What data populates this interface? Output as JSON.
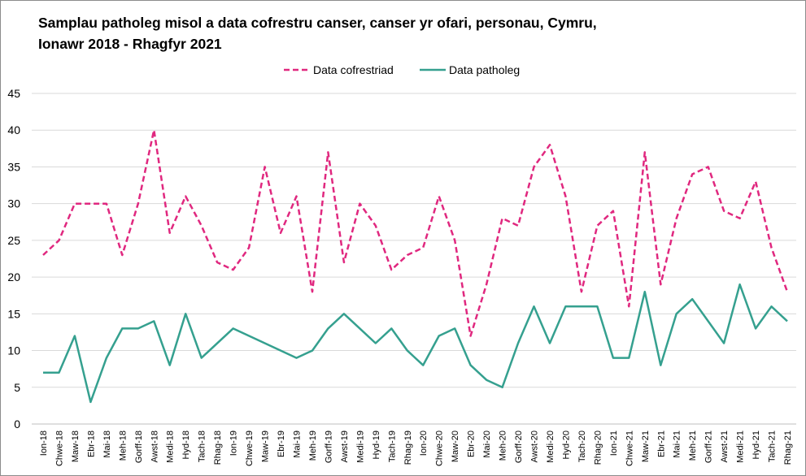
{
  "chart_data": {
    "type": "line",
    "title_lines": [
      "Samplau patholeg misol a data cofrestru canser, canser yr ofari, personau, Cymru,",
      "Ionawr 2018 - Rhagfyr 2021"
    ],
    "xlabel": "",
    "ylabel": "",
    "ylim": [
      0,
      45
    ],
    "yticks": [
      0,
      5,
      10,
      15,
      20,
      25,
      30,
      35,
      40,
      45
    ],
    "grid": true,
    "legend_position": "top-center",
    "categories": [
      "Ion-18",
      "Chwe-18",
      "Maw-18",
      "Ebr-18",
      "Mai-18",
      "Meh-18",
      "Gorff-18",
      "Awst-18",
      "Medi-18",
      "Hyd-18",
      "Tach-18",
      "Rhag-18",
      "Ion-19",
      "Chwe-19",
      "Maw-19",
      "Ebr-19",
      "Mai-19",
      "Meh-19",
      "Gorff-19",
      "Awst-19",
      "Medi-19",
      "Hyd-19",
      "Tach-19",
      "Rhag-19",
      "Ion-20",
      "Chwe-20",
      "Maw-20",
      "Ebr-20",
      "Mai-20",
      "Meh-20",
      "Gorff-20",
      "Awst-20",
      "Medi-20",
      "Hyd-20",
      "Tach-20",
      "Rhag-20",
      "Ion-21",
      "Chwe-21",
      "Maw-21",
      "Ebr-21",
      "Mai-21",
      "Meh-21",
      "Gorff-21",
      "Awst-21",
      "Medi-21",
      "Hyd-21",
      "Tach-21",
      "Rhag-21"
    ],
    "series": [
      {
        "name": "Data cofrestriad",
        "color": "#e0287f",
        "dash": true,
        "values": [
          23,
          25,
          30,
          30,
          30,
          23,
          30,
          40,
          26,
          31,
          27,
          22,
          21,
          24,
          35,
          26,
          31,
          18,
          37,
          22,
          30,
          27,
          21,
          23,
          24,
          31,
          25,
          12,
          19,
          28,
          27,
          35,
          38,
          31,
          18,
          27,
          29,
          16,
          37,
          19,
          28,
          34,
          35,
          29,
          28,
          33,
          24,
          18
        ]
      },
      {
        "name": "Data patholeg",
        "color": "#35a08f",
        "dash": false,
        "values": [
          7,
          7,
          12,
          3,
          9,
          13,
          13,
          14,
          8,
          15,
          9,
          null,
          13,
          null,
          null,
          null,
          9,
          10,
          13,
          15,
          13,
          11,
          13,
          10,
          8,
          12,
          13,
          8,
          6,
          5,
          11,
          16,
          11,
          16,
          16,
          16,
          9,
          9,
          18,
          8,
          15,
          17,
          14,
          11,
          19,
          13,
          16,
          14
        ]
      }
    ]
  }
}
